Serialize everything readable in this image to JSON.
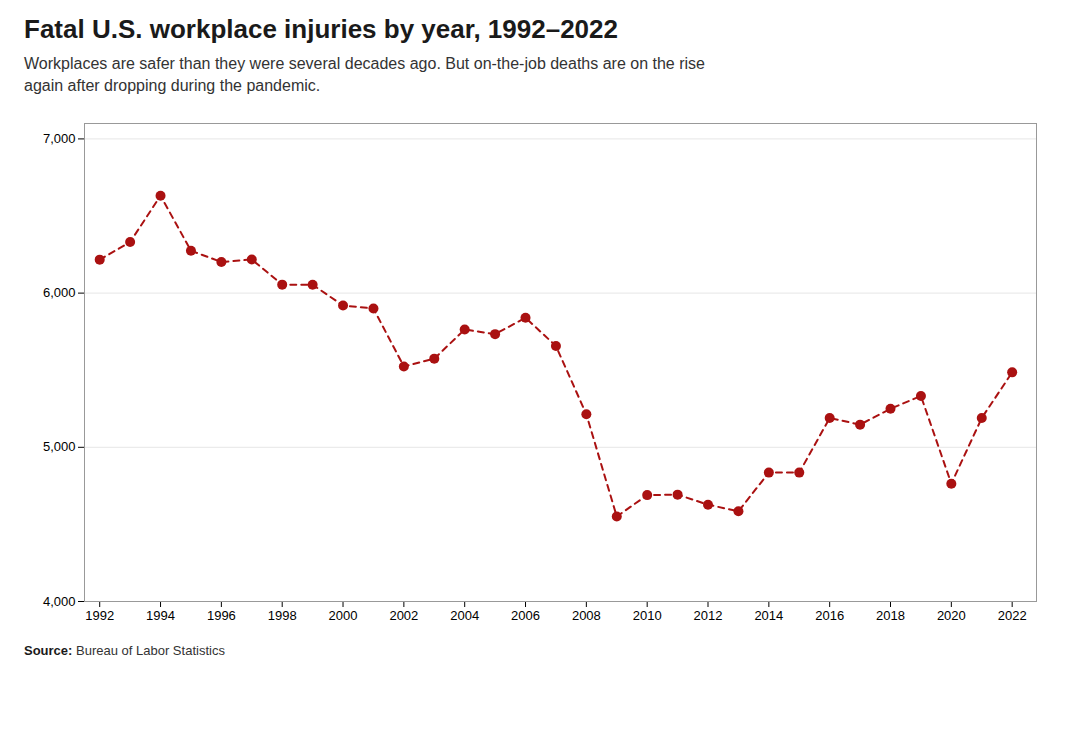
{
  "chart_data": {
    "type": "line",
    "title": "Fatal U.S. workplace injuries by year, 1992–2022",
    "subtitle": [
      "Workplaces are safer than they were several decades ago. But on-the-job deaths are on the rise",
      "again after dropping during the pandemic."
    ],
    "source": "Source: Bureau of Labor Statistics",
    "x": [
      1992,
      1993,
      1994,
      1995,
      1996,
      1997,
      1998,
      1999,
      2000,
      2001,
      2002,
      2003,
      2004,
      2005,
      2006,
      2007,
      2008,
      2009,
      2010,
      2011,
      2012,
      2013,
      2014,
      2015,
      2016,
      2017,
      2018,
      2019,
      2020,
      2021,
      2022
    ],
    "values": [
      6217,
      6331,
      6632,
      6275,
      6202,
      6218,
      6055,
      6054,
      5920,
      5900,
      5524,
      5575,
      5764,
      5734,
      5840,
      5657,
      5214,
      4551,
      4690,
      4693,
      4628,
      4585,
      4836,
      4836,
      5190,
      5147,
      5250,
      5333,
      4764,
      5190,
      5486
    ],
    "color": "#aa1111",
    "marker": "circle",
    "line_style": "dashed",
    "grid": "y",
    "xlim": [
      1991.5,
      2022.8
    ],
    "xticks": [
      1992,
      1994,
      1996,
      1998,
      2000,
      2002,
      2004,
      2006,
      2008,
      2010,
      2012,
      2014,
      2016,
      2018,
      2020,
      2022
    ],
    "ylim": [
      4000,
      7100
    ],
    "yticks": [
      {
        "value": 4000,
        "label": "4,000"
      },
      {
        "value": 5000,
        "label": "5,000"
      },
      {
        "value": 6000,
        "label": "6,000"
      },
      {
        "value": 7000,
        "label": "7,000"
      }
    ]
  }
}
